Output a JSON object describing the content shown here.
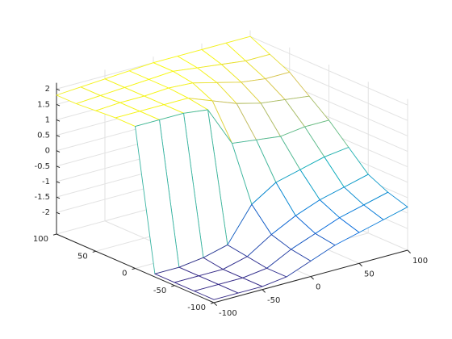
{
  "chart_data": {
    "type": "mesh",
    "colormap": "parula",
    "grid": true,
    "x": [
      -100,
      -75,
      -50,
      -25,
      0,
      25,
      50,
      75,
      100
    ],
    "y": [
      -100,
      -75,
      -50,
      -25,
      0,
      25,
      50,
      75,
      100
    ],
    "z": [
      [
        -2.6,
        -2.6,
        -2.6,
        -2.5,
        -2.2,
        -1.9,
        -1.7,
        -1.5,
        -1.3
      ],
      [
        -2.6,
        -2.6,
        -2.6,
        -2.5,
        -2.1,
        -1.8,
        -1.5,
        -1.3,
        -1.1
      ],
      [
        -2.6,
        -2.6,
        -2.6,
        -2.4,
        -1.9,
        -1.5,
        -1.2,
        -1.0,
        -0.8
      ],
      [
        -2.6,
        -2.6,
        -2.5,
        -2.3,
        -1.2,
        -0.7,
        -0.5,
        -0.3,
        -0.2
      ],
      [
        1.9,
        1.9,
        1.9,
        1.8,
        0.5,
        0.4,
        0.3,
        0.4,
        0.4
      ],
      [
        1.9,
        1.9,
        1.9,
        1.9,
        1.6,
        1.3,
        1.1,
        1.0,
        0.9
      ],
      [
        1.85,
        1.9,
        1.9,
        1.95,
        1.9,
        1.7,
        1.5,
        1.4,
        1.4
      ],
      [
        1.8,
        1.85,
        1.9,
        1.95,
        2.0,
        1.9,
        1.8,
        1.7,
        1.7
      ],
      [
        1.8,
        1.85,
        1.9,
        1.95,
        2.0,
        2.0,
        2.0,
        2.0,
        2.0
      ]
    ],
    "xlim": [
      -100,
      100
    ],
    "ylim": [
      -100,
      100
    ],
    "zlim": [
      -2.7,
      2.2
    ],
    "xticks": [
      -100,
      -50,
      0,
      50,
      100
    ],
    "yticks": [
      -100,
      -50,
      0,
      50,
      100
    ],
    "zticks": [
      -2,
      -1.5,
      -1,
      -0.5,
      0,
      0.5,
      1,
      1.5,
      2
    ]
  }
}
